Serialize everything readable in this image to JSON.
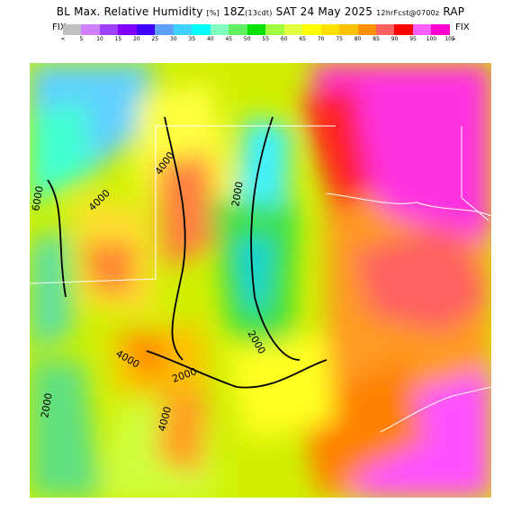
{
  "title": {
    "main": "BL Max. Relative Humidity",
    "unit": "[%]",
    "time": "18Z",
    "local": "(13cdt)",
    "date": "SAT 24 May 2025",
    "fcst": "12hrFcst@0700z",
    "model": "RAP"
  },
  "legend": {
    "fix_left": "FIX",
    "fix_right": "FIX",
    "lt": "<",
    "gt": ">",
    "ticks": [
      "5",
      "10",
      "15",
      "20",
      "25",
      "30",
      "35",
      "40",
      "45",
      "50",
      "55",
      "60",
      "65",
      "70",
      "75",
      "80",
      "85",
      "90",
      "95",
      "100",
      "105"
    ],
    "colors": [
      "#c0c0c0",
      "#d080ff",
      "#a040ff",
      "#8000ff",
      "#4000ff",
      "#60a0ff",
      "#40d0ff",
      "#00ffff",
      "#80ffc0",
      "#60f060",
      "#00e000",
      "#a0ff40",
      "#e0ff40",
      "#ffff00",
      "#ffe000",
      "#ffc000",
      "#ff9000",
      "#ff6060",
      "#ff0000",
      "#ff60ff",
      "#ff00d0"
    ]
  },
  "contours": {
    "labels": [
      "6000",
      "4000",
      "4000",
      "2000",
      "2000",
      "4000",
      "2000",
      "4000",
      "2000"
    ]
  }
}
